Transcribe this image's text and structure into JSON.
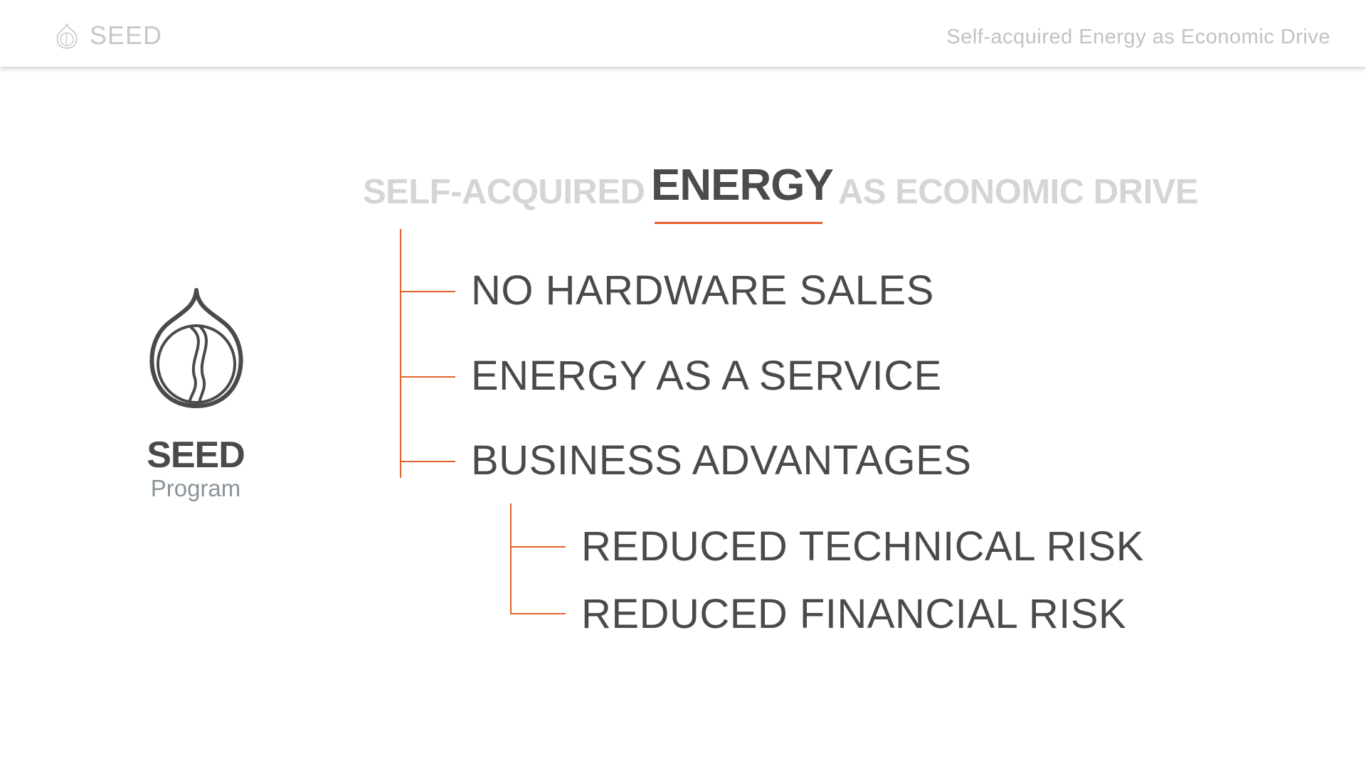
{
  "header": {
    "brand_label": "SEED",
    "title": "Self-acquired Energy as Economic Drive"
  },
  "logo": {
    "name": "SEED",
    "subtitle": "Program"
  },
  "heading": {
    "prefix": "SELF-ACQUIRED",
    "emphasis": "ENERGY",
    "suffix": "AS ECONOMIC DRIVE"
  },
  "items": [
    {
      "label": "NO HARDWARE SALES"
    },
    {
      "label": "ENERGY AS A SERVICE"
    },
    {
      "label": "BUSINESS ADVANTAGES"
    }
  ],
  "subitems": [
    {
      "label": "REDUCED TECHNICAL RISK"
    },
    {
      "label": "REDUCED FINANCIAL RISK"
    }
  ],
  "colors": {
    "accent": "#e4622c",
    "text_dark": "#4a4a4a",
    "text_light": "#d5d5d5",
    "subtitle": "#8a9499"
  },
  "icons": [
    "seed-icon",
    "seed-logo-icon"
  ]
}
